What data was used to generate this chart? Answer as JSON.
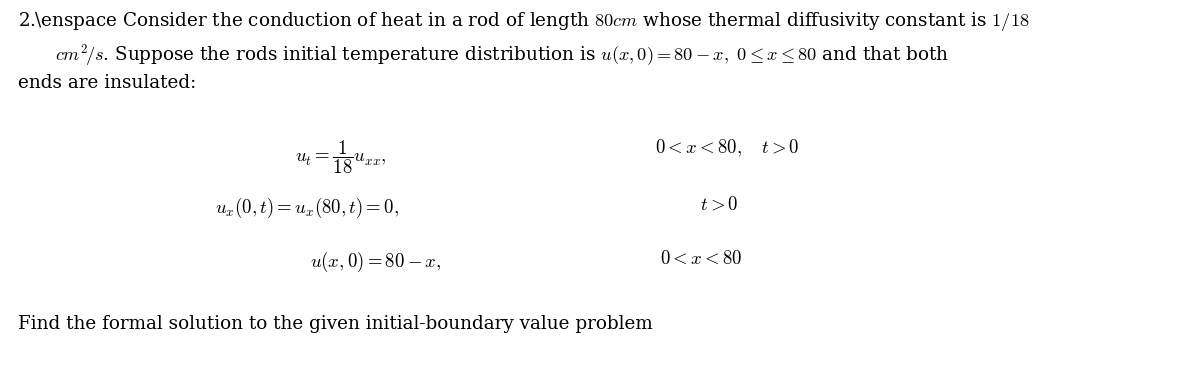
{
  "background_color": "#ffffff",
  "fig_width": 12.0,
  "fig_height": 3.67,
  "dpi": 100,
  "text_color": "#000000",
  "fontsize_para": 13.2,
  "fontsize_eq": 13.5,
  "fontsize_footer": 13.2,
  "para_line1": "2.\\enspace Consider the conduction of heat in a rod of length $80\\,cm$ whose thermal diffusivity constant is $1/18$",
  "para_line2": "\\quad $cm^2\\!/s$. Suppose the rods initial temperature distribution is $u(x,0) = 80-x,\\ 0 \\leq x \\leq 80$ and that both",
  "para_line3": "ends are insulated:",
  "eq1_lhs": "$u_t = \\dfrac{1}{18}u_{xx},$",
  "eq1_rhs": "$0 < x < 80, \\quad t > 0$",
  "eq2_lhs": "$u_x(0,t) = u_x(80,t) = 0,$",
  "eq2_rhs": "$t > 0$",
  "eq3_lhs": "$u(x,0) = 80 - x,$",
  "eq3_rhs": "$0 < x < 80$",
  "footer": "Find the formal solution to the given initial-boundary value problem"
}
